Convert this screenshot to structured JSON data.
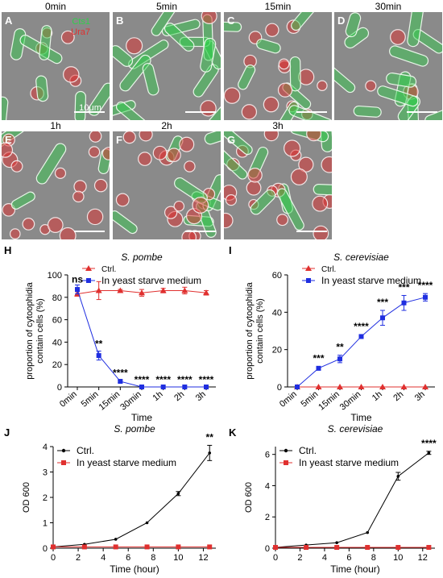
{
  "micrographs": {
    "labels": [
      "A",
      "B",
      "C",
      "D",
      "E",
      "F",
      "G"
    ],
    "times": [
      "0min",
      "5min",
      "15min",
      "30min",
      "1h",
      "2h",
      "3h"
    ],
    "legend_cts1": "Cts1",
    "legend_ura7": "Ura7",
    "scale_bar": "10μm",
    "colors": {
      "cts1": "#2fd04a",
      "ura7": "#e03030",
      "background": "#8a8a8a"
    }
  },
  "chart_data": [
    {
      "panel": "H",
      "type": "line",
      "title": "S. pombe",
      "xlabel": "Time",
      "ylabel": "proportion of cytoophidia contain cells (%)",
      "categories": [
        "0min",
        "5min",
        "15min",
        "30min",
        "1h",
        "2h",
        "3h"
      ],
      "ylim": [
        0,
        100
      ],
      "yticks": [
        0,
        20,
        40,
        60,
        80,
        100
      ],
      "legend_position": "top-right",
      "series": [
        {
          "name": "Ctrl.",
          "color": "#e0302f",
          "marker": "triangle",
          "values": [
            83,
            86,
            86,
            84,
            86,
            86,
            84
          ],
          "errors": [
            2,
            8,
            1,
            3,
            2,
            3,
            2
          ]
        },
        {
          "name": "In yeast starve medium",
          "color": "#1f2ee0",
          "marker": "square",
          "values": [
            87,
            28,
            5,
            0,
            0,
            0,
            0
          ],
          "errors": [
            4,
            4,
            1,
            0,
            0,
            0,
            0
          ]
        }
      ],
      "annotations": [
        "ns",
        "**",
        "****",
        "****",
        "****",
        "****",
        "****"
      ]
    },
    {
      "panel": "I",
      "type": "line",
      "title": "S. cerevisiae",
      "xlabel": "Time",
      "ylabel": "proportion of cytoophidia contain cells (%)",
      "categories": [
        "0min",
        "5min",
        "15min",
        "30min",
        "1h",
        "2h",
        "3h"
      ],
      "ylim": [
        0,
        60
      ],
      "yticks": [
        0,
        20,
        40,
        60
      ],
      "legend_position": "top-right",
      "series": [
        {
          "name": "Ctrl.",
          "color": "#e0302f",
          "marker": "triangle",
          "values": [
            0,
            0,
            0,
            0,
            0,
            0,
            0
          ],
          "errors": [
            0,
            0,
            0,
            0,
            0,
            0,
            0
          ]
        },
        {
          "name": "In yeast starve medium",
          "color": "#1f2ee0",
          "marker": "square",
          "values": [
            0,
            10,
            15,
            27,
            37,
            45,
            48
          ],
          "errors": [
            0,
            1,
            2,
            1,
            4,
            4,
            2
          ]
        }
      ],
      "annotations": [
        "",
        "***",
        "**",
        "****",
        "***",
        "***",
        "****"
      ]
    },
    {
      "panel": "J",
      "type": "line",
      "title": "S. pombe",
      "xlabel": "Time (hour)",
      "ylabel": "OD 600",
      "x": [
        0,
        2.5,
        5,
        7.5,
        10,
        12.5
      ],
      "xticks": [
        0,
        2,
        4,
        6,
        8,
        10,
        12
      ],
      "xlim": [
        0,
        13
      ],
      "ylim": [
        0,
        4
      ],
      "yticks": [
        0,
        1,
        2,
        3,
        4
      ],
      "legend_position": "top-left",
      "series": [
        {
          "name": "Ctrl.",
          "color": "#000000",
          "marker": "dot",
          "values": [
            0.05,
            0.15,
            0.35,
            1.0,
            2.15,
            3.75
          ],
          "errors": [
            0,
            0,
            0,
            0,
            0.08,
            0.3
          ]
        },
        {
          "name": "In yeast starve medium",
          "color": "#e0302f",
          "marker": "square",
          "values": [
            0.05,
            0.05,
            0.05,
            0.05,
            0.05,
            0.05
          ],
          "errors": [
            0,
            0,
            0,
            0,
            0,
            0
          ]
        }
      ],
      "annotations": [
        {
          "x": 12.5,
          "text": "**"
        }
      ]
    },
    {
      "panel": "K",
      "type": "line",
      "title": "S. cerevisiae",
      "xlabel": "Time (hour)",
      "ylabel": "OD 600",
      "x": [
        0,
        2.5,
        5,
        7.5,
        10,
        12.5
      ],
      "xticks": [
        0,
        2,
        4,
        6,
        8,
        10,
        12
      ],
      "xlim": [
        0,
        13
      ],
      "ylim": [
        0,
        6.5
      ],
      "yticks": [
        0,
        2,
        4,
        6
      ],
      "legend_position": "top-left",
      "series": [
        {
          "name": "Ctrl.",
          "color": "#000000",
          "marker": "dot",
          "values": [
            0.05,
            0.2,
            0.35,
            1.0,
            4.6,
            6.1
          ],
          "errors": [
            0,
            0,
            0,
            0,
            0.25,
            0.1
          ]
        },
        {
          "name": "In yeast starve medium",
          "color": "#e0302f",
          "marker": "square",
          "values": [
            0.05,
            0.05,
            0.05,
            0.05,
            0.05,
            0.05
          ],
          "errors": [
            0,
            0,
            0,
            0,
            0,
            0
          ]
        }
      ],
      "annotations": [
        {
          "x": 12.5,
          "text": "****"
        }
      ]
    }
  ]
}
